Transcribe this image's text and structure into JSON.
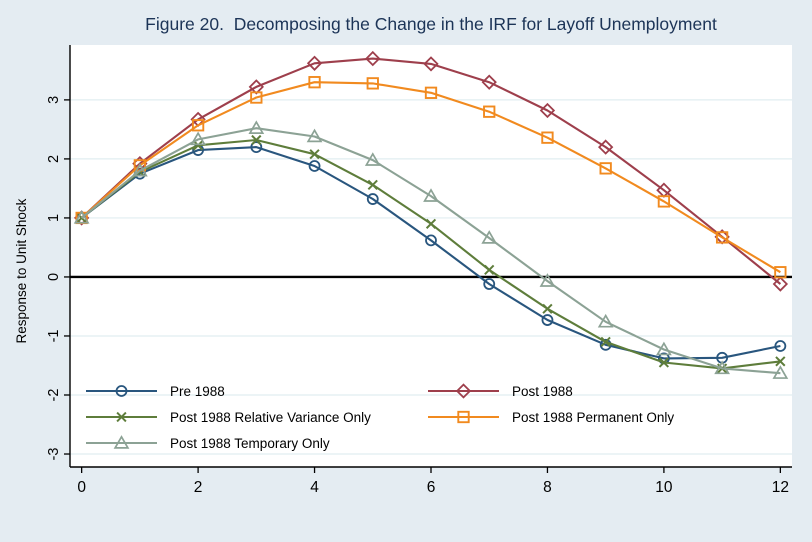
{
  "figure": {
    "title": "Figure 20.  Decomposing the Change in the IRF for Layoff Unemployment"
  },
  "chart_data": {
    "type": "line",
    "title": "Figure 20. Decomposing the Change in the IRF for Layoff Unemployment",
    "xlabel": "",
    "ylabel": "Response to Unit Shock",
    "x": [
      0,
      1,
      2,
      3,
      4,
      5,
      6,
      7,
      8,
      9,
      10,
      11,
      12
    ],
    "x_tick_labels": [
      0,
      2,
      4,
      6,
      8,
      10,
      12
    ],
    "y_tick_labels": [
      -3,
      -2,
      -1,
      0,
      1,
      2,
      3
    ],
    "xlim": [
      -0.2,
      12.2
    ],
    "ylim": [
      -3.22,
      3.93
    ],
    "grid": "horizontal light gridlines at integer y values",
    "reference_line_y": 0,
    "legend_position": "inside plot, bottom-left, two columns, no frame",
    "series": [
      {
        "name": "Pre 1988",
        "marker": "circle",
        "color": "#29567E",
        "values": [
          1.0,
          1.75,
          2.15,
          2.2,
          1.88,
          1.32,
          0.62,
          -0.12,
          -0.73,
          -1.15,
          -1.38,
          -1.37,
          -1.17
        ]
      },
      {
        "name": "Post 1988",
        "marker": "diamond",
        "color": "#9E3F4C",
        "values": [
          1.0,
          1.92,
          2.67,
          3.22,
          3.62,
          3.7,
          3.61,
          3.3,
          2.82,
          2.2,
          1.47,
          0.68,
          -0.12
        ]
      },
      {
        "name": "Post 1988 Relative Variance Only",
        "marker": "x",
        "color": "#5E7D3B",
        "values": [
          1.0,
          1.78,
          2.23,
          2.32,
          2.08,
          1.56,
          0.9,
          0.12,
          -0.54,
          -1.1,
          -1.45,
          -1.55,
          -1.43
        ]
      },
      {
        "name": "Post 1988 Permanent Only",
        "marker": "square",
        "color": "#F18A1F",
        "values": [
          1.0,
          1.89,
          2.57,
          3.04,
          3.3,
          3.28,
          3.12,
          2.8,
          2.36,
          1.84,
          1.28,
          0.67,
          0.08
        ]
      },
      {
        "name": "Post 1988 Temporary Only",
        "marker": "triangle",
        "color": "#8CA295",
        "values": [
          1.0,
          1.8,
          2.33,
          2.52,
          2.38,
          1.98,
          1.37,
          0.66,
          -0.07,
          -0.76,
          -1.23,
          -1.55,
          -1.63
        ]
      }
    ]
  },
  "colors": {
    "figure_background": "#e4ecf2",
    "plot_background": "#ffffff",
    "gridline": "#e1edf1",
    "axis_line": "#000000",
    "zero_reference_line": "#000000",
    "title_text": "#1c3457",
    "tick_text": "#000000"
  }
}
